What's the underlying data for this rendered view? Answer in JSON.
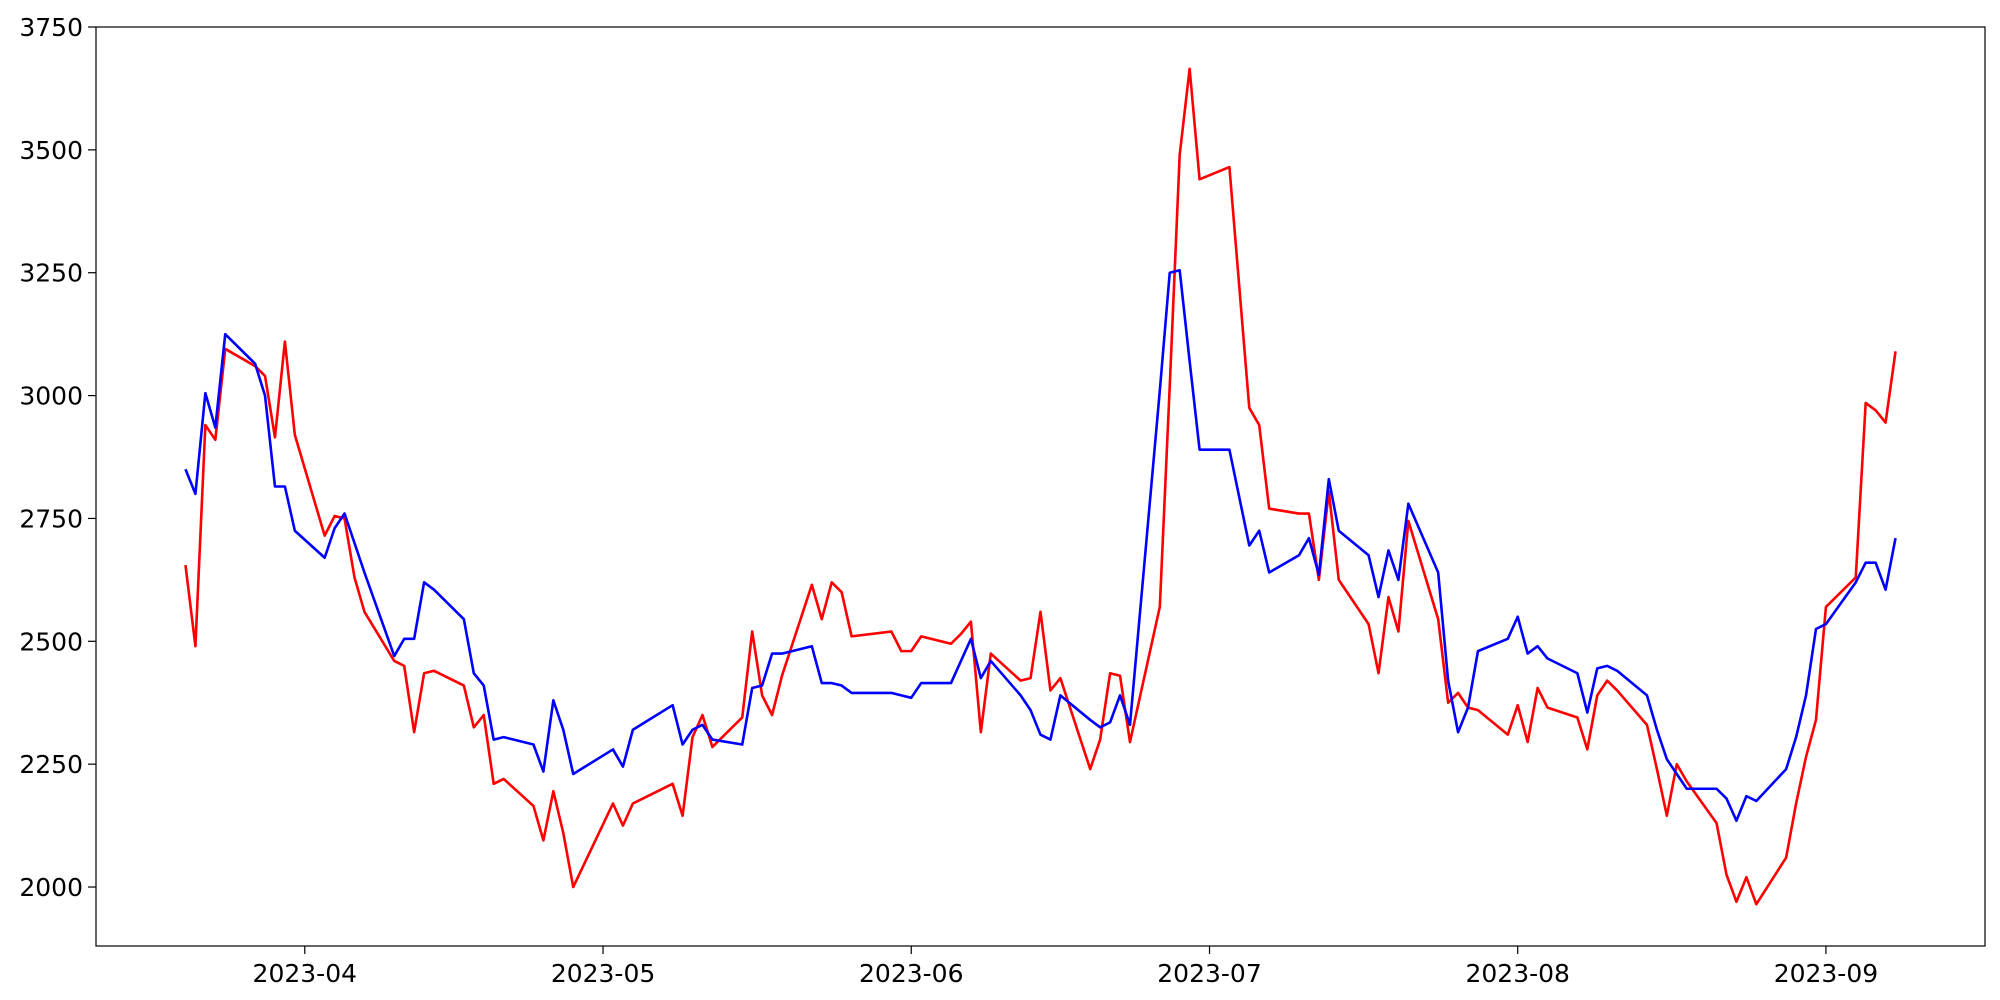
{
  "chart_data": {
    "type": "line",
    "x": [
      "2023-03-20",
      "2023-03-21",
      "2023-03-22",
      "2023-03-23",
      "2023-03-24",
      "2023-03-27",
      "2023-03-28",
      "2023-03-29",
      "2023-03-30",
      "2023-03-31",
      "2023-04-03",
      "2023-04-04",
      "2023-04-05",
      "2023-04-06",
      "2023-04-07",
      "2023-04-10",
      "2023-04-11",
      "2023-04-12",
      "2023-04-13",
      "2023-04-14",
      "2023-04-17",
      "2023-04-18",
      "2023-04-19",
      "2023-04-20",
      "2023-04-21",
      "2023-04-24",
      "2023-04-25",
      "2023-04-26",
      "2023-04-27",
      "2023-04-28",
      "2023-05-02",
      "2023-05-03",
      "2023-05-04",
      "2023-05-08",
      "2023-05-09",
      "2023-05-10",
      "2023-05-11",
      "2023-05-12",
      "2023-05-15",
      "2023-05-16",
      "2023-05-17",
      "2023-05-18",
      "2023-05-19",
      "2023-05-22",
      "2023-05-23",
      "2023-05-24",
      "2023-05-25",
      "2023-05-26",
      "2023-05-30",
      "2023-05-31",
      "2023-06-01",
      "2023-06-02",
      "2023-06-05",
      "2023-06-06",
      "2023-06-07",
      "2023-06-08",
      "2023-06-09",
      "2023-06-12",
      "2023-06-13",
      "2023-06-14",
      "2023-06-15",
      "2023-06-16",
      "2023-06-19",
      "2023-06-20",
      "2023-06-21",
      "2023-06-22",
      "2023-06-23",
      "2023-06-26",
      "2023-06-27",
      "2023-06-28",
      "2023-06-29",
      "2023-06-30",
      "2023-07-03",
      "2023-07-05",
      "2023-07-06",
      "2023-07-07",
      "2023-07-10",
      "2023-07-11",
      "2023-07-12",
      "2023-07-13",
      "2023-07-14",
      "2023-07-17",
      "2023-07-18",
      "2023-07-19",
      "2023-07-20",
      "2023-07-21",
      "2023-07-24",
      "2023-07-25",
      "2023-07-26",
      "2023-07-27",
      "2023-07-28",
      "2023-07-31",
      "2023-08-01",
      "2023-08-02",
      "2023-08-03",
      "2023-08-04",
      "2023-08-07",
      "2023-08-08",
      "2023-08-09",
      "2023-08-10",
      "2023-08-11",
      "2023-08-14",
      "2023-08-15",
      "2023-08-16",
      "2023-08-17",
      "2023-08-18",
      "2023-08-21",
      "2023-08-22",
      "2023-08-23",
      "2023-08-24",
      "2023-08-25",
      "2023-08-28",
      "2023-08-29",
      "2023-08-30",
      "2023-08-31",
      "2023-09-01",
      "2023-09-04",
      "2023-09-05",
      "2023-09-06",
      "2023-09-07",
      "2023-09-08"
    ],
    "series": [
      {
        "color": "red",
        "values": [
          2655,
          2490,
          2940,
          2910,
          3095,
          3060,
          3040,
          2915,
          3110,
          2920,
          2715,
          2755,
          2750,
          2630,
          2560,
          2460,
          2450,
          2315,
          2435,
          2440,
          2410,
          2325,
          2350,
          2210,
          2220,
          2165,
          2095,
          2195,
          2110,
          2000,
          2170,
          2125,
          2170,
          2210,
          2145,
          2305,
          2350,
          2285,
          2345,
          2520,
          2390,
          2350,
          2430,
          2615,
          2545,
          2620,
          2600,
          2510,
          2520,
          2480,
          2480,
          2510,
          2495,
          2515,
          2540,
          2315,
          2475,
          2420,
          2425,
          2560,
          2400,
          2425,
          2240,
          2300,
          2435,
          2430,
          2295,
          2570,
          3020,
          3490,
          3665,
          3440,
          3465,
          2975,
          2940,
          2770,
          2760,
          2760,
          2625,
          2805,
          2625,
          2535,
          2435,
          2590,
          2520,
          2745,
          2545,
          2375,
          2395,
          2365,
          2360,
          2310,
          2370,
          2295,
          2405,
          2365,
          2345,
          2280,
          2390,
          2420,
          2400,
          2330,
          2240,
          2145,
          2250,
          2215,
          2130,
          2025,
          1970,
          2020,
          1965,
          2060,
          2170,
          2265,
          2340,
          2570,
          2630,
          2985,
          2970,
          2945,
          3090
        ]
      },
      {
        "color": "blue",
        "values": [
          2850,
          2800,
          3005,
          2935,
          3125,
          3065,
          3000,
          2815,
          2815,
          2725,
          2670,
          2730,
          2760,
          2700,
          2640,
          2470,
          2505,
          2505,
          2620,
          2605,
          2545,
          2435,
          2410,
          2300,
          2305,
          2290,
          2235,
          2380,
          2320,
          2230,
          2280,
          2245,
          2320,
          2370,
          2290,
          2320,
          2330,
          2300,
          2290,
          2405,
          2410,
          2475,
          2475,
          2490,
          2415,
          2415,
          2410,
          2395,
          2395,
          2390,
          2385,
          2415,
          2415,
          2460,
          2505,
          2425,
          2460,
          2390,
          2360,
          2310,
          2300,
          2390,
          2340,
          2325,
          2335,
          2390,
          2330,
          3010,
          3250,
          3255,
          3070,
          2890,
          2890,
          2695,
          2725,
          2640,
          2675,
          2710,
          2635,
          2830,
          2725,
          2675,
          2590,
          2685,
          2625,
          2780,
          2640,
          2420,
          2315,
          2365,
          2480,
          2505,
          2550,
          2475,
          2490,
          2465,
          2435,
          2355,
          2445,
          2450,
          2440,
          2390,
          2320,
          2260,
          2230,
          2200,
          2200,
          2180,
          2135,
          2185,
          2175,
          2240,
          2305,
          2390,
          2525,
          2535,
          2620,
          2660,
          2660,
          2605,
          2710
        ]
      }
    ],
    "xlim": [
      "2023-03-11",
      "2023-09-17"
    ],
    "xticks": [
      {
        "value": "2023-04-01",
        "label": "2023-04"
      },
      {
        "value": "2023-05-01",
        "label": "2023-05"
      },
      {
        "value": "2023-06-01",
        "label": "2023-06"
      },
      {
        "value": "2023-07-01",
        "label": "2023-07"
      },
      {
        "value": "2023-08-01",
        "label": "2023-08"
      },
      {
        "value": "2023-09-01",
        "label": "2023-09"
      }
    ],
    "ylim": [
      1880,
      3750
    ],
    "yticks": [
      2000,
      2250,
      2500,
      2750,
      3000,
      3250,
      3500,
      3750
    ],
    "grid": false
  }
}
